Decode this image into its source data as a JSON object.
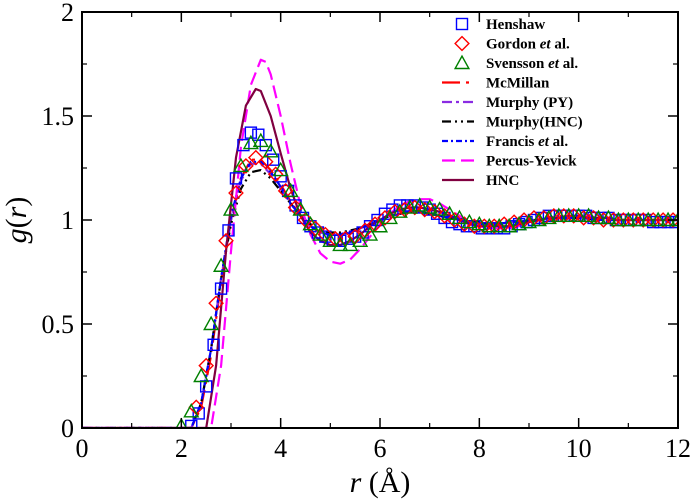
{
  "chart_data": {
    "type": "line",
    "title": "",
    "xlabel_parts": {
      "var": "r",
      "unit": " (Å)"
    },
    "ylabel_parts": {
      "fn": "g",
      "open": "(",
      "var": "r",
      "close": ")"
    },
    "xlim": [
      0,
      12
    ],
    "ylim": [
      0,
      2
    ],
    "x_ticks": [
      0,
      2,
      4,
      6,
      8,
      10,
      12
    ],
    "x_tick_labels": [
      "0",
      "2",
      "4",
      "6",
      "8",
      "10",
      "12"
    ],
    "y_ticks": [
      0,
      0.5,
      1,
      1.5,
      2
    ],
    "y_tick_labels": [
      "0",
      "0.5",
      "1",
      "1.5",
      "2"
    ],
    "grid": false,
    "legend_position": "top-right",
    "series": [
      {
        "name": "Henshaw",
        "color": "#0000ff",
        "marker": "square",
        "x": [
          2.2,
          2.35,
          2.5,
          2.65,
          2.8,
          2.95,
          3.1,
          3.25,
          3.4,
          3.55,
          3.7,
          3.85,
          4.0,
          4.15,
          4.3,
          4.45,
          4.6,
          4.75,
          4.9,
          5.05,
          5.2,
          5.35,
          5.5,
          5.65,
          5.8,
          5.95,
          6.1,
          6.25,
          6.4,
          6.55,
          6.7,
          6.85,
          7.0,
          7.15,
          7.3,
          7.45,
          7.6,
          7.75,
          7.9,
          8.05,
          8.2,
          8.35,
          8.5,
          8.65,
          8.8,
          8.95,
          9.1,
          9.25,
          9.4,
          9.55,
          9.7,
          9.85,
          10.0,
          10.15,
          10.3,
          10.45,
          10.6,
          10.75,
          10.9,
          11.05,
          11.2,
          11.35,
          11.5,
          11.65,
          11.8,
          11.95
        ],
        "y": [
          0.01,
          0.07,
          0.2,
          0.4,
          0.67,
          0.95,
          1.2,
          1.36,
          1.42,
          1.41,
          1.36,
          1.29,
          1.21,
          1.14,
          1.07,
          1.01,
          0.97,
          0.94,
          0.92,
          0.9,
          0.9,
          0.91,
          0.92,
          0.94,
          0.97,
          1.0,
          1.03,
          1.05,
          1.07,
          1.07,
          1.07,
          1.06,
          1.05,
          1.03,
          1.01,
          0.99,
          0.98,
          0.97,
          0.97,
          0.96,
          0.96,
          0.96,
          0.96,
          0.97,
          0.98,
          0.99,
          1.0,
          1.01,
          1.02,
          1.02,
          1.02,
          1.02,
          1.02,
          1.02,
          1.01,
          1.01,
          1.01,
          1.0,
          1.0,
          1.0,
          1.0,
          1.0,
          0.99,
          0.99,
          0.99,
          0.99
        ]
      },
      {
        "name": "Gordon et al.",
        "name_parts": [
          "Gordon ",
          "et",
          " al."
        ],
        "color": "#ff0000",
        "marker": "diamond",
        "x": [
          2.3,
          2.5,
          2.7,
          2.9,
          3.1,
          3.3,
          3.5,
          3.7,
          3.9,
          4.1,
          4.3,
          4.5,
          4.7,
          4.9,
          5.1,
          5.3,
          5.5,
          5.7,
          5.9,
          6.1,
          6.3,
          6.5,
          6.7,
          6.9,
          7.1,
          7.3,
          7.5,
          7.7,
          7.9,
          8.1,
          8.3,
          8.5,
          8.7,
          8.9,
          9.1,
          9.3,
          9.5,
          9.7,
          9.9,
          10.1,
          10.3,
          10.5,
          10.7,
          10.9,
          11.1,
          11.3,
          11.5,
          11.7,
          11.9
        ],
        "y": [
          0.1,
          0.3,
          0.6,
          0.9,
          1.13,
          1.26,
          1.3,
          1.28,
          1.22,
          1.14,
          1.06,
          1.0,
          0.96,
          0.93,
          0.91,
          0.91,
          0.92,
          0.95,
          0.98,
          1.01,
          1.04,
          1.05,
          1.06,
          1.05,
          1.04,
          1.02,
          1.0,
          0.98,
          0.97,
          0.97,
          0.97,
          0.98,
          0.99,
          1.0,
          1.01,
          1.01,
          1.02,
          1.02,
          1.02,
          1.01,
          1.01,
          1.0,
          1.0,
          1.0,
          1.0,
          1.0,
          1.0,
          1.0,
          1.0
        ]
      },
      {
        "name": "Svensson et al.",
        "name_parts": [
          "Svensson ",
          "et",
          " al."
        ],
        "color": "#008000",
        "marker": "triangle",
        "x": [
          2.0,
          2.2,
          2.4,
          2.6,
          2.8,
          3.0,
          3.2,
          3.4,
          3.6,
          3.8,
          4.0,
          4.2,
          4.4,
          4.6,
          4.8,
          5.0,
          5.2,
          5.4,
          5.6,
          5.8,
          6.0,
          6.2,
          6.4,
          6.6,
          6.8,
          7.0,
          7.2,
          7.4,
          7.6,
          7.8,
          8.0,
          8.2,
          8.4,
          8.6,
          8.8,
          9.0,
          9.2,
          9.4,
          9.6,
          9.8,
          10.0,
          10.2,
          10.4,
          10.6,
          10.8,
          11.0,
          11.2,
          11.4,
          11.6,
          11.8,
          12.0
        ],
        "y": [
          0.01,
          0.08,
          0.25,
          0.5,
          0.78,
          1.05,
          1.26,
          1.37,
          1.38,
          1.33,
          1.24,
          1.14,
          1.05,
          0.98,
          0.93,
          0.9,
          0.88,
          0.88,
          0.9,
          0.93,
          0.97,
          1.01,
          1.04,
          1.06,
          1.07,
          1.06,
          1.05,
          1.03,
          1.01,
          0.99,
          0.98,
          0.97,
          0.97,
          0.97,
          0.98,
          0.99,
          1.0,
          1.01,
          1.02,
          1.02,
          1.02,
          1.02,
          1.01,
          1.01,
          1.0,
          1.0,
          1.0,
          1.0,
          1.0,
          1.0,
          1.0
        ]
      },
      {
        "name": "McMillan",
        "color": "#ff0000",
        "dash": "18 6 3 6",
        "x": [
          0,
          2.2,
          2.4,
          2.6,
          2.8,
          3.0,
          3.2,
          3.4,
          3.6,
          3.8,
          4.0,
          4.2,
          4.4,
          4.6,
          4.8,
          5.0,
          5.2,
          5.4,
          5.6,
          5.8,
          6.0,
          6.2,
          6.4,
          6.6,
          6.8,
          7.0,
          7.2,
          7.4,
          7.6,
          7.8,
          8.0,
          8.2,
          8.4,
          8.6,
          8.8,
          9.0,
          9.2,
          9.4,
          9.6,
          9.8,
          10.0,
          10.2,
          10.4,
          10.6,
          10.8,
          11.0,
          11.5,
          12.0
        ],
        "y": [
          0,
          0.0,
          0.1,
          0.35,
          0.7,
          1.0,
          1.2,
          1.29,
          1.29,
          1.24,
          1.17,
          1.09,
          1.02,
          0.97,
          0.94,
          0.93,
          0.93,
          0.94,
          0.96,
          0.98,
          1.0,
          1.02,
          1.03,
          1.04,
          1.04,
          1.03,
          1.02,
          1.01,
          1.0,
          0.99,
          0.98,
          0.98,
          0.98,
          0.98,
          0.99,
          0.99,
          1.0,
          1.0,
          1.01,
          1.01,
          1.01,
          1.01,
          1.01,
          1.0,
          1.0,
          1.0,
          1.0,
          1.0
        ]
      },
      {
        "name": "Murphy (PY)",
        "color": "#8a2be2",
        "dash": "10 4 3 4",
        "x": [
          0,
          2.2,
          2.4,
          2.6,
          2.8,
          3.0,
          3.2,
          3.4,
          3.6,
          3.8,
          4.0,
          4.2,
          4.4,
          4.6,
          4.8,
          5.0,
          5.2,
          5.4,
          5.6,
          5.8,
          6.0,
          6.2,
          6.4,
          6.6,
          6.8,
          7.0,
          7.2,
          7.4,
          7.6,
          7.8,
          8.0,
          8.2,
          8.4,
          8.6,
          8.8,
          9.0,
          9.2,
          9.4,
          9.6,
          9.8,
          10.0,
          10.5,
          11.0,
          11.5,
          12.0
        ],
        "y": [
          0,
          0.0,
          0.12,
          0.38,
          0.72,
          1.0,
          1.19,
          1.27,
          1.27,
          1.22,
          1.15,
          1.08,
          1.02,
          0.97,
          0.94,
          0.93,
          0.93,
          0.94,
          0.96,
          0.98,
          1.0,
          1.02,
          1.03,
          1.04,
          1.04,
          1.03,
          1.02,
          1.01,
          1.0,
          0.99,
          0.98,
          0.98,
          0.98,
          0.99,
          0.99,
          1.0,
          1.0,
          1.01,
          1.01,
          1.01,
          1.01,
          1.0,
          1.0,
          1.0,
          1.0
        ]
      },
      {
        "name": "Murphy(HNC)",
        "color": "#000000",
        "dash": "9 4 2 4 2 4",
        "x": [
          0,
          2.2,
          2.4,
          2.6,
          2.8,
          3.0,
          3.2,
          3.4,
          3.6,
          3.8,
          4.0,
          4.2,
          4.4,
          4.6,
          4.8,
          5.0,
          5.2,
          5.4,
          5.6,
          5.8,
          6.0,
          6.2,
          6.4,
          6.6,
          6.8,
          7.0,
          7.2,
          7.4,
          7.6,
          7.8,
          8.0,
          8.2,
          8.4,
          8.6,
          8.8,
          9.0,
          9.2,
          9.4,
          9.6,
          9.8,
          10.0,
          10.5,
          11.0,
          11.5,
          12.0
        ],
        "y": [
          0,
          0.0,
          0.12,
          0.38,
          0.72,
          0.98,
          1.15,
          1.23,
          1.24,
          1.2,
          1.14,
          1.08,
          1.02,
          0.98,
          0.95,
          0.94,
          0.94,
          0.95,
          0.96,
          0.98,
          1.0,
          1.02,
          1.03,
          1.04,
          1.04,
          1.03,
          1.02,
          1.01,
          1.0,
          0.99,
          0.99,
          0.98,
          0.98,
          0.99,
          0.99,
          1.0,
          1.0,
          1.01,
          1.01,
          1.01,
          1.01,
          1.0,
          1.0,
          1.0,
          1.0
        ]
      },
      {
        "name": "Francis et al.",
        "name_parts": [
          "Francis ",
          "et",
          " al."
        ],
        "color": "#0000ff",
        "dash": "6 3 2 3",
        "x": [
          0,
          2.2,
          2.4,
          2.6,
          2.8,
          3.0,
          3.2,
          3.4,
          3.6,
          3.8,
          4.0,
          4.2,
          4.4,
          4.6,
          4.8,
          5.0,
          5.2,
          5.4,
          5.6,
          5.8,
          6.0,
          6.2,
          6.4,
          6.6,
          6.8,
          7.0,
          7.2,
          7.4,
          7.6,
          7.8,
          8.0,
          8.2,
          8.4,
          8.6,
          8.8,
          9.0,
          9.2,
          9.4,
          9.6,
          9.8,
          10.0,
          10.5,
          11.0,
          11.5,
          12.0
        ],
        "y": [
          0,
          0.0,
          0.12,
          0.38,
          0.72,
          1.02,
          1.2,
          1.28,
          1.28,
          1.23,
          1.16,
          1.08,
          1.02,
          0.97,
          0.94,
          0.93,
          0.93,
          0.94,
          0.96,
          0.98,
          1.0,
          1.02,
          1.03,
          1.04,
          1.04,
          1.03,
          1.02,
          1.01,
          1.0,
          0.99,
          0.98,
          0.98,
          0.98,
          0.99,
          0.99,
          1.0,
          1.0,
          1.01,
          1.01,
          1.01,
          1.01,
          1.0,
          1.0,
          1.0,
          1.0
        ]
      },
      {
        "name": "Percus-Yevick",
        "color": "#ff00ff",
        "dash": "13 6",
        "x": [
          0,
          2.6,
          2.8,
          3.0,
          3.2,
          3.4,
          3.6,
          3.7,
          3.8,
          4.0,
          4.2,
          4.4,
          4.6,
          4.8,
          5.0,
          5.2,
          5.4,
          5.6,
          5.8,
          6.0,
          6.2,
          6.4,
          6.6,
          6.8,
          7.0,
          7.2,
          7.4,
          7.6,
          7.8,
          8.0,
          8.2,
          8.4,
          8.6,
          8.8,
          9.0,
          9.2,
          9.4,
          9.6,
          9.8,
          10.0,
          10.2,
          10.4,
          10.6,
          10.8,
          11.0,
          11.5,
          12.0
        ],
        "y": [
          0,
          0.0,
          0.3,
          0.85,
          1.35,
          1.65,
          1.77,
          1.76,
          1.7,
          1.5,
          1.27,
          1.07,
          0.93,
          0.84,
          0.8,
          0.79,
          0.81,
          0.86,
          0.92,
          0.98,
          1.03,
          1.07,
          1.09,
          1.1,
          1.1,
          1.08,
          1.05,
          1.02,
          0.99,
          0.97,
          0.96,
          0.96,
          0.96,
          0.97,
          0.99,
          1.0,
          1.01,
          1.02,
          1.02,
          1.02,
          1.02,
          1.01,
          1.01,
          1.0,
          1.0,
          1.0,
          1.0
        ]
      },
      {
        "name": "HNC",
        "color": "#800040",
        "dash": "",
        "x": [
          0,
          2.5,
          2.7,
          2.9,
          3.1,
          3.3,
          3.5,
          3.6,
          3.8,
          4.0,
          4.2,
          4.4,
          4.6,
          4.8,
          5.0,
          5.2,
          5.4,
          5.6,
          5.8,
          6.0,
          6.2,
          6.4,
          6.6,
          6.8,
          7.0,
          7.2,
          7.4,
          7.6,
          7.8,
          8.0,
          8.2,
          8.4,
          8.6,
          8.8,
          9.0,
          9.2,
          9.4,
          9.6,
          9.8,
          10.0,
          10.2,
          10.4,
          10.6,
          10.8,
          11.0,
          11.5,
          12.0
        ],
        "y": [
          0,
          0.0,
          0.3,
          0.85,
          1.3,
          1.55,
          1.63,
          1.62,
          1.5,
          1.32,
          1.15,
          1.02,
          0.94,
          0.9,
          0.88,
          0.88,
          0.9,
          0.93,
          0.97,
          1.0,
          1.03,
          1.05,
          1.06,
          1.06,
          1.05,
          1.04,
          1.02,
          1.0,
          0.98,
          0.97,
          0.97,
          0.97,
          0.97,
          0.98,
          0.99,
          1.0,
          1.01,
          1.01,
          1.02,
          1.02,
          1.01,
          1.01,
          1.01,
          1.0,
          1.0,
          1.0,
          1.0
        ]
      }
    ]
  }
}
